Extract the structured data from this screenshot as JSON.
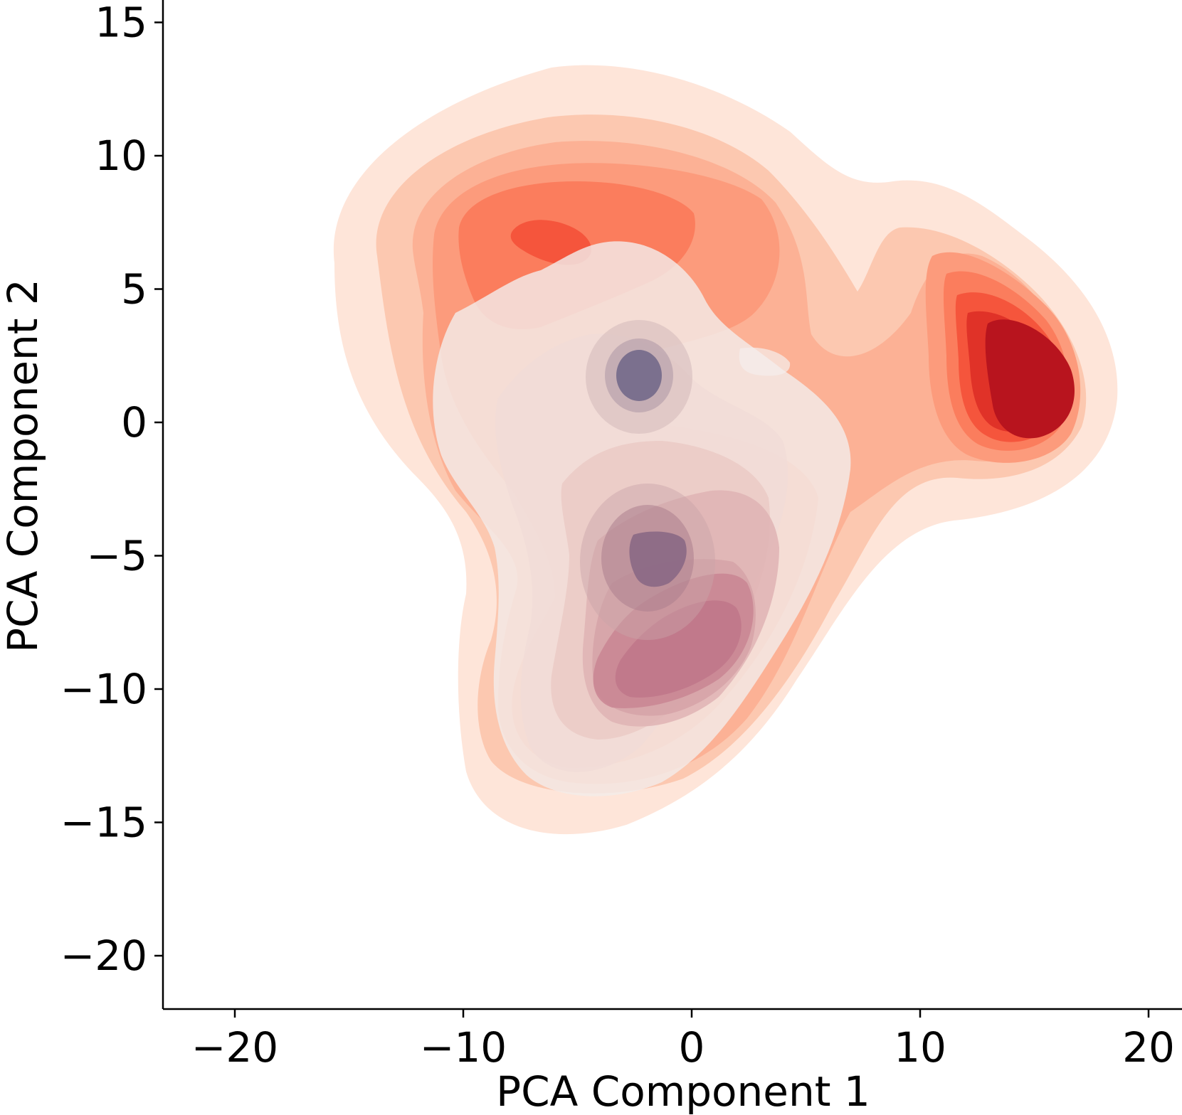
{
  "chart_data": {
    "type": "kde_contour",
    "xlabel": "PCA Component 1",
    "ylabel": "PCA Component 2",
    "xlim": [
      -23.2,
      21.5
    ],
    "ylim": [
      -22.0,
      16.0
    ],
    "xticks": [
      -20,
      -10,
      0,
      10,
      20
    ],
    "yticks": [
      -20,
      -15,
      -10,
      -5,
      0,
      5,
      10,
      15
    ],
    "xtick_labels": [
      "−20",
      "−10",
      "0",
      "10",
      "20"
    ],
    "ytick_labels": [
      "−20",
      "−15",
      "−10",
      "−5",
      "0",
      "5",
      "10",
      "15"
    ],
    "grid": false,
    "legend": "none",
    "series": [
      {
        "colormap": "Reds",
        "levels": 8,
        "modes": [
          {
            "x": 14.8,
            "y": 1.7
          },
          {
            "x": -7.0,
            "y": 7.0
          },
          {
            "x": 0.5,
            "y": -8.5
          }
        ]
      },
      {
        "colormap": "grey-purple",
        "alpha": 0.6,
        "levels": 10,
        "modes": [
          {
            "x": -2.3,
            "y": 1.8
          },
          {
            "x": -1.6,
            "y": -5.0
          }
        ]
      }
    ]
  },
  "colors": {
    "reds": [
      "#fee5d9",
      "#fcc8b0",
      "#fcb195",
      "#fc9b7c",
      "#fb7d5d",
      "#f5553c",
      "#e03228",
      "#b8141e"
    ],
    "overlay": "#f3ece9",
    "overlay_mid": "#e3c7c3",
    "overlay_dark": "#8c6a86",
    "overlay_peak": "#6f6587"
  }
}
